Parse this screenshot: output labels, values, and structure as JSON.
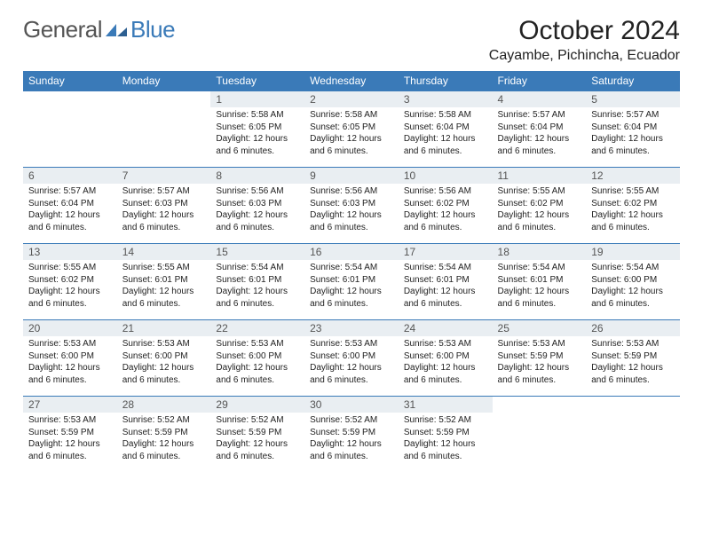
{
  "brand": {
    "word_a": "General",
    "word_b": "Blue"
  },
  "title": "October 2024",
  "location": "Cayambe, Pichincha, Ecuador",
  "colors": {
    "header_bg": "#3a7ab8",
    "header_text": "#ffffff",
    "daynum_bg": "#e9eef2",
    "daynum_text": "#555555",
    "row_rule": "#3a7ab8",
    "body_text": "#222222",
    "page_bg": "#ffffff"
  },
  "typography": {
    "title_fontsize": 30,
    "location_fontsize": 16,
    "weekday_fontsize": 12,
    "daynum_fontsize": 12,
    "cell_fontsize": 10,
    "font_family": "Arial"
  },
  "weekdays": [
    "Sunday",
    "Monday",
    "Tuesday",
    "Wednesday",
    "Thursday",
    "Friday",
    "Saturday"
  ],
  "leading_blanks": 2,
  "days": [
    {
      "n": 1,
      "sunrise": "5:58 AM",
      "sunset": "6:05 PM",
      "daylight": "12 hours and 6 minutes."
    },
    {
      "n": 2,
      "sunrise": "5:58 AM",
      "sunset": "6:05 PM",
      "daylight": "12 hours and 6 minutes."
    },
    {
      "n": 3,
      "sunrise": "5:58 AM",
      "sunset": "6:04 PM",
      "daylight": "12 hours and 6 minutes."
    },
    {
      "n": 4,
      "sunrise": "5:57 AM",
      "sunset": "6:04 PM",
      "daylight": "12 hours and 6 minutes."
    },
    {
      "n": 5,
      "sunrise": "5:57 AM",
      "sunset": "6:04 PM",
      "daylight": "12 hours and 6 minutes."
    },
    {
      "n": 6,
      "sunrise": "5:57 AM",
      "sunset": "6:04 PM",
      "daylight": "12 hours and 6 minutes."
    },
    {
      "n": 7,
      "sunrise": "5:57 AM",
      "sunset": "6:03 PM",
      "daylight": "12 hours and 6 minutes."
    },
    {
      "n": 8,
      "sunrise": "5:56 AM",
      "sunset": "6:03 PM",
      "daylight": "12 hours and 6 minutes."
    },
    {
      "n": 9,
      "sunrise": "5:56 AM",
      "sunset": "6:03 PM",
      "daylight": "12 hours and 6 minutes."
    },
    {
      "n": 10,
      "sunrise": "5:56 AM",
      "sunset": "6:02 PM",
      "daylight": "12 hours and 6 minutes."
    },
    {
      "n": 11,
      "sunrise": "5:55 AM",
      "sunset": "6:02 PM",
      "daylight": "12 hours and 6 minutes."
    },
    {
      "n": 12,
      "sunrise": "5:55 AM",
      "sunset": "6:02 PM",
      "daylight": "12 hours and 6 minutes."
    },
    {
      "n": 13,
      "sunrise": "5:55 AM",
      "sunset": "6:02 PM",
      "daylight": "12 hours and 6 minutes."
    },
    {
      "n": 14,
      "sunrise": "5:55 AM",
      "sunset": "6:01 PM",
      "daylight": "12 hours and 6 minutes."
    },
    {
      "n": 15,
      "sunrise": "5:54 AM",
      "sunset": "6:01 PM",
      "daylight": "12 hours and 6 minutes."
    },
    {
      "n": 16,
      "sunrise": "5:54 AM",
      "sunset": "6:01 PM",
      "daylight": "12 hours and 6 minutes."
    },
    {
      "n": 17,
      "sunrise": "5:54 AM",
      "sunset": "6:01 PM",
      "daylight": "12 hours and 6 minutes."
    },
    {
      "n": 18,
      "sunrise": "5:54 AM",
      "sunset": "6:01 PM",
      "daylight": "12 hours and 6 minutes."
    },
    {
      "n": 19,
      "sunrise": "5:54 AM",
      "sunset": "6:00 PM",
      "daylight": "12 hours and 6 minutes."
    },
    {
      "n": 20,
      "sunrise": "5:53 AM",
      "sunset": "6:00 PM",
      "daylight": "12 hours and 6 minutes."
    },
    {
      "n": 21,
      "sunrise": "5:53 AM",
      "sunset": "6:00 PM",
      "daylight": "12 hours and 6 minutes."
    },
    {
      "n": 22,
      "sunrise": "5:53 AM",
      "sunset": "6:00 PM",
      "daylight": "12 hours and 6 minutes."
    },
    {
      "n": 23,
      "sunrise": "5:53 AM",
      "sunset": "6:00 PM",
      "daylight": "12 hours and 6 minutes."
    },
    {
      "n": 24,
      "sunrise": "5:53 AM",
      "sunset": "6:00 PM",
      "daylight": "12 hours and 6 minutes."
    },
    {
      "n": 25,
      "sunrise": "5:53 AM",
      "sunset": "5:59 PM",
      "daylight": "12 hours and 6 minutes."
    },
    {
      "n": 26,
      "sunrise": "5:53 AM",
      "sunset": "5:59 PM",
      "daylight": "12 hours and 6 minutes."
    },
    {
      "n": 27,
      "sunrise": "5:53 AM",
      "sunset": "5:59 PM",
      "daylight": "12 hours and 6 minutes."
    },
    {
      "n": 28,
      "sunrise": "5:52 AM",
      "sunset": "5:59 PM",
      "daylight": "12 hours and 6 minutes."
    },
    {
      "n": 29,
      "sunrise": "5:52 AM",
      "sunset": "5:59 PM",
      "daylight": "12 hours and 6 minutes."
    },
    {
      "n": 30,
      "sunrise": "5:52 AM",
      "sunset": "5:59 PM",
      "daylight": "12 hours and 6 minutes."
    },
    {
      "n": 31,
      "sunrise": "5:52 AM",
      "sunset": "5:59 PM",
      "daylight": "12 hours and 6 minutes."
    }
  ],
  "labels": {
    "sunrise": "Sunrise:",
    "sunset": "Sunset:",
    "daylight": "Daylight:"
  }
}
